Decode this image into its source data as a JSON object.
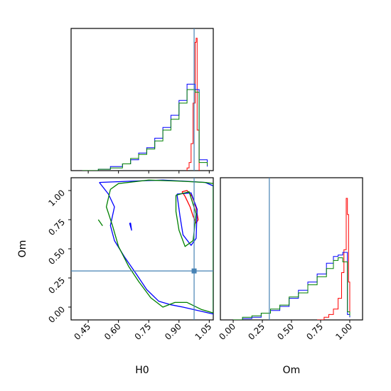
{
  "chart_data": {
    "type": "corner",
    "parameters": [
      "H0",
      "Om"
    ],
    "truths": {
      "H0": 0.975,
      "Om": 0.31
    },
    "colors": {
      "truth": "#4682b4",
      "red": "#ff0000",
      "blue": "#0000ff",
      "green": "#008000"
    },
    "axes": {
      "H0": {
        "range": [
          0.365,
          1.07
        ],
        "ticks": [
          0.45,
          0.6,
          0.75,
          0.9,
          1.05
        ],
        "tick_labels": [
          "0.45",
          "0.60",
          "0.75",
          "0.90",
          "1.05"
        ],
        "label": "H0"
      },
      "Om": {
        "range": [
          -0.11,
          1.11
        ],
        "ticks": [
          0.0,
          0.25,
          0.5,
          0.75,
          1.0
        ],
        "tick_labels": [
          "0.00",
          "0.25",
          "0.50",
          "0.75",
          "1.00"
        ],
        "label": "Om"
      }
    },
    "hist_H0": {
      "series": [
        {
          "name_hint": "red",
          "color": "#ff0000",
          "x": [
            0.94,
            0.95,
            0.96,
            0.97,
            0.98,
            0.985,
            0.99,
            1.0
          ],
          "y": [
            0.02,
            0.06,
            0.2,
            0.5,
            0.95,
            0.98,
            0.3,
            0.0
          ]
        },
        {
          "name_hint": "blue",
          "color": "#0000ff",
          "x": [
            0.42,
            0.5,
            0.56,
            0.62,
            0.66,
            0.7,
            0.74,
            0.78,
            0.82,
            0.86,
            0.9,
            0.94,
            0.98,
            1.0,
            1.04
          ],
          "y": [
            0.0,
            0.01,
            0.03,
            0.05,
            0.08,
            0.13,
            0.17,
            0.24,
            0.32,
            0.41,
            0.52,
            0.64,
            0.6,
            0.08,
            0.03
          ]
        },
        {
          "name_hint": "green",
          "color": "#008000",
          "x": [
            0.42,
            0.5,
            0.56,
            0.62,
            0.66,
            0.7,
            0.74,
            0.78,
            0.82,
            0.86,
            0.9,
            0.94,
            0.98,
            1.0,
            1.04
          ],
          "y": [
            0.0,
            0.01,
            0.02,
            0.05,
            0.09,
            0.12,
            0.16,
            0.22,
            0.3,
            0.38,
            0.5,
            0.6,
            0.58,
            0.06,
            0.04
          ]
        }
      ]
    },
    "hist_Om": {
      "series": [
        {
          "name_hint": "red",
          "color": "#ff0000",
          "x": [
            0.72,
            0.78,
            0.82,
            0.86,
            0.9,
            0.93,
            0.95,
            0.97,
            0.98,
            0.99,
            1.0
          ],
          "y": [
            0.0,
            0.02,
            0.04,
            0.08,
            0.16,
            0.35,
            0.52,
            0.9,
            0.78,
            0.28,
            0.02
          ]
        },
        {
          "name_hint": "blue",
          "color": "#0000ff",
          "x": [
            0.0,
            0.08,
            0.16,
            0.24,
            0.32,
            0.4,
            0.48,
            0.56,
            0.64,
            0.72,
            0.8,
            0.86,
            0.9,
            0.94,
            0.98,
            1.0
          ],
          "y": [
            0.0,
            0.01,
            0.02,
            0.05,
            0.07,
            0.1,
            0.16,
            0.22,
            0.28,
            0.34,
            0.42,
            0.47,
            0.48,
            0.5,
            0.04,
            0.02
          ]
        },
        {
          "name_hint": "green",
          "color": "#008000",
          "x": [
            0.0,
            0.08,
            0.16,
            0.24,
            0.32,
            0.4,
            0.48,
            0.56,
            0.64,
            0.72,
            0.8,
            0.86,
            0.9,
            0.94,
            0.98,
            1.0
          ],
          "y": [
            0.0,
            0.02,
            0.03,
            0.05,
            0.08,
            0.11,
            0.17,
            0.2,
            0.26,
            0.32,
            0.38,
            0.44,
            0.46,
            0.43,
            0.06,
            0.03
          ]
        }
      ]
    },
    "contours": [
      {
        "color": "#ff0000",
        "paths": [
          [
            [
              0.915,
              0.99
            ],
            [
              0.93,
              0.95
            ],
            [
              0.955,
              0.86
            ],
            [
              0.97,
              0.78
            ],
            [
              0.985,
              0.72
            ],
            [
              0.995,
              0.75
            ],
            [
              0.985,
              0.85
            ],
            [
              0.965,
              0.95
            ],
            [
              0.94,
              1.0
            ],
            [
              0.915,
              0.99
            ]
          ]
        ]
      },
      {
        "color": "#0000ff",
        "paths": [
          [
            [
              0.505,
              1.07
            ],
            [
              0.66,
              1.08
            ],
            [
              0.82,
              1.09
            ],
            [
              0.93,
              1.08
            ],
            [
              1.03,
              1.07
            ],
            [
              1.07,
              1.04
            ],
            [
              1.07,
              -0.06
            ],
            [
              1.02,
              -0.04
            ],
            [
              0.92,
              0.0
            ],
            [
              0.86,
              0.02
            ],
            [
              0.8,
              0.05
            ],
            [
              0.74,
              0.15
            ],
            [
              0.69,
              0.28
            ],
            [
              0.63,
              0.43
            ],
            [
              0.58,
              0.57
            ],
            [
              0.56,
              0.7
            ],
            [
              0.58,
              0.86
            ],
            [
              0.55,
              0.97
            ],
            [
              0.505,
              1.07
            ]
          ],
          [
            [
              0.89,
              0.97
            ],
            [
              0.96,
              0.98
            ],
            [
              0.99,
              0.84
            ],
            [
              0.985,
              0.59
            ],
            [
              0.96,
              0.53
            ],
            [
              0.92,
              0.62
            ],
            [
              0.905,
              0.78
            ],
            [
              0.89,
              0.97
            ]
          ],
          [
            [
              0.655,
              0.72
            ],
            [
              0.665,
              0.66
            ],
            [
              0.66,
              0.72
            ],
            [
              0.655,
              0.72
            ]
          ]
        ]
      },
      {
        "color": "#008000",
        "paths": [
          [
            [
              0.56,
              1.01
            ],
            [
              0.6,
              1.06
            ],
            [
              0.75,
              1.09
            ],
            [
              0.91,
              1.08
            ],
            [
              1.03,
              1.07
            ],
            [
              1.07,
              1.06
            ],
            [
              1.07,
              -0.05
            ],
            [
              1.01,
              -0.02
            ],
            [
              0.94,
              0.04
            ],
            [
              0.88,
              0.04
            ],
            [
              0.82,
              0.0
            ],
            [
              0.76,
              0.08
            ],
            [
              0.7,
              0.22
            ],
            [
              0.65,
              0.35
            ],
            [
              0.6,
              0.52
            ],
            [
              0.57,
              0.7
            ],
            [
              0.54,
              0.86
            ],
            [
              0.56,
              1.01
            ]
          ],
          [
            [
              0.885,
              0.96
            ],
            [
              0.95,
              0.99
            ],
            [
              0.985,
              0.8
            ],
            [
              0.97,
              0.57
            ],
            [
              0.93,
              0.52
            ],
            [
              0.9,
              0.66
            ],
            [
              0.885,
              0.82
            ],
            [
              0.885,
              0.96
            ]
          ],
          [
            [
              0.5,
              0.75
            ],
            [
              0.52,
              0.7
            ],
            [
              0.5,
              0.75
            ],
            [
              0.5,
              0.75
            ]
          ]
        ]
      }
    ]
  }
}
